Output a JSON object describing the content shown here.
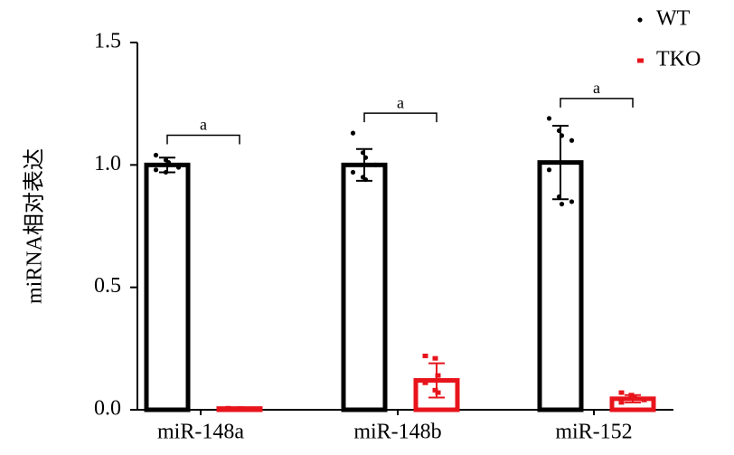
{
  "chart_data": {
    "type": "bar",
    "y_label": "miRNA相对表达",
    "categories": [
      "miR-148a",
      "miR-148b",
      "miR-152"
    ],
    "series": [
      {
        "name": "WT",
        "color": "#000000",
        "values": [
          1.0,
          1.0,
          1.01
        ],
        "errors": [
          0.03,
          0.065,
          0.15
        ],
        "points": [
          [
            1.04,
            1.02,
            1.01,
            0.99,
            0.98,
            0.97,
            1.0
          ],
          [
            1.13,
            1.05,
            1.03,
            1.0,
            0.97,
            0.95,
            0.94
          ],
          [
            1.19,
            1.14,
            1.12,
            1.1,
            0.98,
            0.87,
            0.84,
            0.85
          ]
        ]
      },
      {
        "name": "TKO",
        "color": "#e8141c",
        "values": [
          0.005,
          0.12,
          0.045
        ],
        "errors": [
          0.002,
          0.07,
          0.015
        ],
        "points": [
          [
            0.006,
            0.004,
            0.005,
            0.003,
            0.006
          ],
          [
            0.22,
            0.21,
            0.14,
            0.12,
            0.11,
            0.08,
            0.07
          ],
          [
            0.07,
            0.06,
            0.05,
            0.04,
            0.03
          ]
        ]
      }
    ],
    "annotations": [
      "a",
      "a",
      "a"
    ],
    "ylim": [
      0,
      1.5
    ],
    "yticks": [
      {
        "value": 0,
        "label": "0.0"
      },
      {
        "value": 0.5,
        "label": "0.5"
      },
      {
        "value": 1.0,
        "label": "1.0"
      },
      {
        "value": 1.5,
        "label": "1.5"
      }
    ],
    "legend": "top-right"
  }
}
